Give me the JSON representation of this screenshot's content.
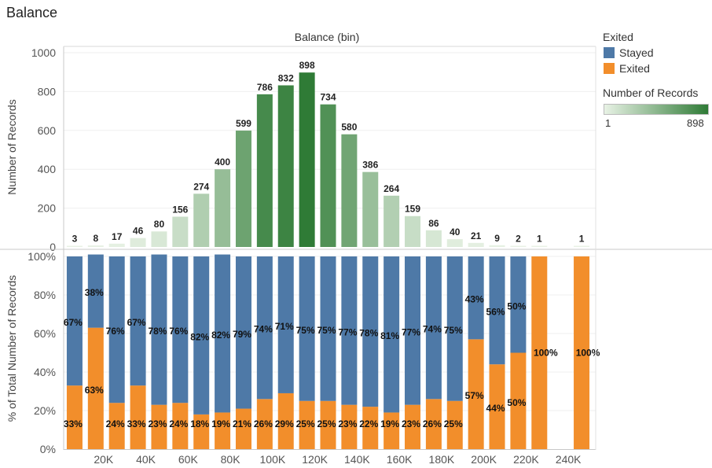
{
  "title": "Balance",
  "colors": {
    "stayed": "#4e79a7",
    "exited": "#f28e2b",
    "green_low": "#e8f2e5",
    "green_high": "#2f7b36"
  },
  "legend": {
    "color_title": "Exited",
    "items": [
      {
        "label": "Stayed",
        "color": "#4e79a7"
      },
      {
        "label": "Exited",
        "color": "#f28e2b"
      }
    ],
    "size_title": "Number of Records",
    "min_label": "1",
    "max_label": "898"
  },
  "chart_data": [
    {
      "type": "bar",
      "title": "Balance (bin)",
      "xlabel": "",
      "ylabel": "Number of Records",
      "ylim": [
        0,
        1000
      ],
      "yticks": [
        "0",
        "200",
        "400",
        "600",
        "800",
        "1000"
      ],
      "categories": [
        "10K",
        "20K",
        "30K",
        "40K",
        "50K",
        "60K",
        "70K",
        "80K",
        "90K",
        "100K",
        "110K",
        "120K",
        "130K",
        "140K",
        "150K",
        "160K",
        "170K",
        "180K",
        "190K",
        "200K",
        "210K",
        "220K",
        "230K",
        "240K",
        "250K"
      ],
      "values": [
        3,
        8,
        17,
        46,
        80,
        156,
        274,
        400,
        599,
        786,
        832,
        898,
        734,
        580,
        386,
        264,
        159,
        86,
        40,
        21,
        9,
        2,
        1,
        null,
        1
      ],
      "value_labels": [
        "3",
        "8",
        "17",
        "46",
        "80",
        "156",
        "274",
        "400",
        "599",
        "786",
        "832",
        "898",
        "734",
        "580",
        "386",
        "264",
        "159",
        "86",
        "40",
        "21",
        "9",
        "2",
        "1",
        "",
        "1"
      ],
      "grid": true
    },
    {
      "type": "bar",
      "stacked": true,
      "ylabel": "% of Total Number of Records",
      "ylim": [
        0,
        100
      ],
      "yticks": [
        "0%",
        "20%",
        "40%",
        "60%",
        "80%",
        "100%"
      ],
      "xtick_labels": [
        "20K",
        "40K",
        "60K",
        "80K",
        "100K",
        "120K",
        "140K",
        "160K",
        "180K",
        "200K",
        "220K",
        "240K"
      ],
      "categories": [
        "10K",
        "20K",
        "30K",
        "40K",
        "50K",
        "60K",
        "70K",
        "80K",
        "90K",
        "100K",
        "110K",
        "120K",
        "130K",
        "140K",
        "150K",
        "160K",
        "170K",
        "180K",
        "190K",
        "200K",
        "210K",
        "220K",
        "230K",
        "240K",
        "250K"
      ],
      "series": [
        {
          "name": "Exited",
          "values": [
            33,
            63,
            24,
            33,
            23,
            24,
            18,
            19,
            21,
            26,
            29,
            25,
            25,
            23,
            22,
            19,
            23,
            26,
            25,
            57,
            44,
            50,
            100,
            null,
            100
          ],
          "labels": [
            "33%",
            "63%",
            "24%",
            "33%",
            "23%",
            "24%",
            "18%",
            "19%",
            "21%",
            "26%",
            "29%",
            "25%",
            "25%",
            "23%",
            "22%",
            "19%",
            "23%",
            "26%",
            "25%",
            "57%",
            "44%",
            "50%",
            "100%",
            "",
            "100%"
          ]
        },
        {
          "name": "Stayed",
          "values": [
            67,
            38,
            76,
            67,
            78,
            76,
            82,
            82,
            79,
            74,
            71,
            75,
            75,
            77,
            78,
            81,
            77,
            74,
            75,
            43,
            56,
            50,
            0,
            null,
            0
          ],
          "labels": [
            "67%",
            "38%",
            "76%",
            "67%",
            "78%",
            "76%",
            "82%",
            "82%",
            "79%",
            "74%",
            "71%",
            "75%",
            "75%",
            "77%",
            "78%",
            "81%",
            "77%",
            "74%",
            "75%",
            "43%",
            "56%",
            "50%",
            "",
            "",
            ""
          ]
        }
      ],
      "grid": true
    }
  ]
}
